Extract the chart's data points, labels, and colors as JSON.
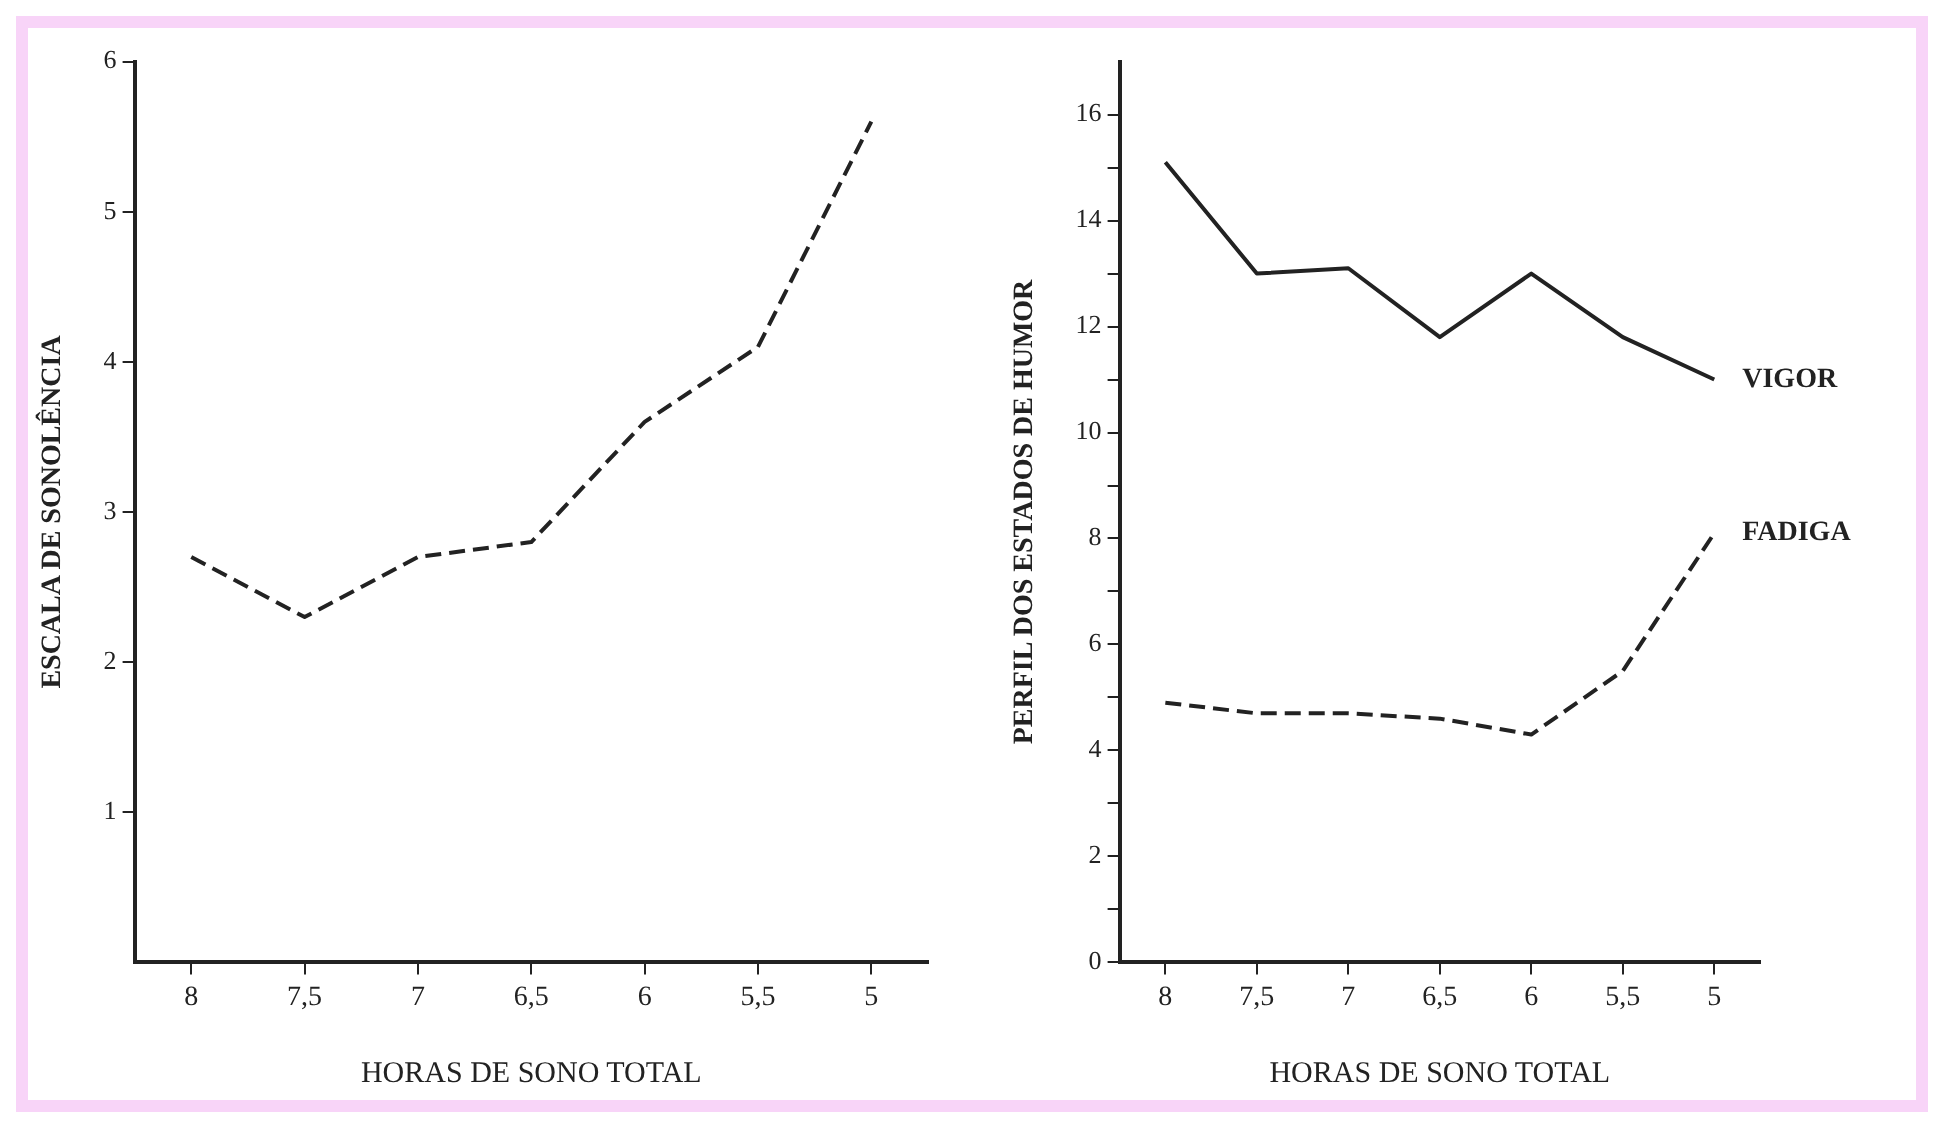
{
  "chart_data": [
    {
      "type": "line",
      "xlabel": "HORAS DE SONO TOTAL",
      "ylabel": "ESCALA DE SONOLÊNCIA",
      "categories": [
        "8",
        "7,5",
        "7",
        "6,5",
        "6",
        "5,5",
        "5"
      ],
      "series": [
        {
          "color": "#222222",
          "line_style": "dashed",
          "values": [
            2.7,
            2.3,
            2.7,
            2.8,
            3.6,
            4.1,
            5.6
          ]
        }
      ],
      "ylim": [
        0,
        6
      ],
      "yticks": [
        1,
        2,
        3,
        4,
        5,
        6
      ],
      "grid": false,
      "legend": false,
      "marker": "none"
    },
    {
      "type": "line",
      "xlabel": "HORAS DE SONO TOTAL",
      "ylabel": "PERFIL DOS ESTADOS DE HUMOR",
      "categories": [
        "8",
        "7,5",
        "7",
        "6,5",
        "6",
        "5,5",
        "5"
      ],
      "series": [
        {
          "name": "VIGOR",
          "color": "#222222",
          "line_style": "solid",
          "values": [
            15.1,
            13.0,
            13.1,
            11.8,
            13.0,
            11.8,
            11.0
          ]
        },
        {
          "name": "FADIGA",
          "color": "#222222",
          "line_style": "dashed",
          "values": [
            4.9,
            4.7,
            4.7,
            4.6,
            4.3,
            5.5,
            8.1
          ]
        }
      ],
      "ylim": [
        0,
        17
      ],
      "yticks": [
        0,
        {
          "value": 1,
          "label": null
        },
        2,
        {
          "value": 3,
          "label": null
        },
        4,
        {
          "value": 5,
          "label": null
        },
        6,
        {
          "value": 7,
          "label": null
        },
        8,
        {
          "value": 9,
          "label": null
        },
        10,
        {
          "value": 11,
          "label": null
        },
        12,
        {
          "value": 13,
          "label": null
        },
        14,
        {
          "value": 15,
          "label": null
        },
        16
      ],
      "grid": false,
      "legend": false,
      "marker": "none"
    }
  ]
}
